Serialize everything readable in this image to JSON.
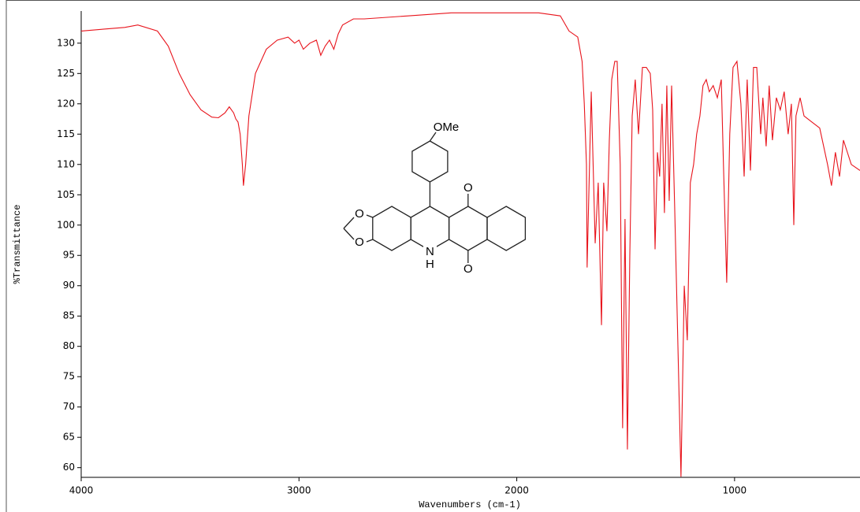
{
  "chart_data": {
    "type": "line",
    "x_label": "Wavenumbers (cm-1)",
    "y_label": "%Transmittance",
    "xlim": [
      4000,
      424
    ],
    "ylim": [
      58.4,
      135.3
    ],
    "xticks": [
      4000,
      3000,
      2000,
      1000
    ],
    "yticks": [
      60,
      65,
      70,
      75,
      80,
      85,
      90,
      95,
      100,
      105,
      110,
      115,
      120,
      125,
      130
    ],
    "structure_labels": [
      "OMe",
      "O",
      "O",
      "N",
      "H",
      "O",
      "O"
    ],
    "x": [
      4000,
      3900,
      3800,
      3740,
      3650,
      3600,
      3550,
      3500,
      3450,
      3400,
      3370,
      3340,
      3320,
      3300,
      3290,
      3280,
      3270,
      3260,
      3255,
      3245,
      3230,
      3200,
      3150,
      3100,
      3050,
      3020,
      3000,
      2980,
      2950,
      2920,
      2900,
      2880,
      2860,
      2840,
      2820,
      2800,
      2750,
      2700,
      2500,
      2300,
      2100,
      1900,
      1800,
      1760,
      1720,
      1700,
      1690,
      1680,
      1677,
      1658,
      1640,
      1626,
      1611,
      1601,
      1586,
      1575,
      1564,
      1550,
      1539,
      1525,
      1514,
      1503,
      1492,
      1481,
      1470,
      1456,
      1441,
      1423,
      1405,
      1387,
      1376,
      1365,
      1354,
      1344,
      1333,
      1322,
      1311,
      1300,
      1289,
      1275,
      1260,
      1246,
      1231,
      1217,
      1203,
      1188,
      1174,
      1159,
      1145,
      1130,
      1116,
      1098,
      1079,
      1061,
      1051,
      1036,
      1022,
      1007,
      989,
      971,
      956,
      942,
      927,
      913,
      898,
      880,
      870,
      855,
      841,
      826,
      808,
      790,
      772,
      754,
      739,
      728,
      718,
      699,
      681,
      645,
      609,
      591,
      573,
      555,
      537,
      518,
      500,
      482,
      464,
      424
    ],
    "series": [
      {
        "name": "%Transmittance",
        "color": "#e8141c",
        "values": [
          132,
          132.3,
          132.6,
          133,
          132,
          129.5,
          125,
          121.5,
          119,
          117.8,
          117.7,
          118.5,
          119.5,
          118.5,
          117.5,
          117,
          115,
          110,
          106.5,
          110,
          118,
          125,
          129,
          130.5,
          131,
          130,
          130.5,
          129,
          130,
          130.5,
          128,
          129.5,
          130.5,
          129,
          131.5,
          133,
          134,
          134,
          134.5,
          135,
          135,
          135,
          134.5,
          132,
          131,
          127,
          120,
          110,
          93,
          122,
          97,
          107,
          83.5,
          107,
          99,
          114,
          124,
          127,
          127,
          110,
          66.5,
          101,
          63,
          95,
          118,
          124,
          115,
          126,
          126,
          125,
          119,
          96,
          112,
          108,
          120,
          102,
          123,
          104,
          123,
          103,
          80,
          58.5,
          90,
          81,
          107,
          110,
          115,
          118,
          123,
          124,
          122,
          123,
          121,
          124,
          110,
          90.5,
          115,
          126,
          127,
          120,
          108,
          124,
          109,
          126,
          126,
          115,
          121,
          113,
          123,
          114,
          121,
          119,
          122,
          115,
          120,
          100,
          118,
          121,
          118,
          117,
          116,
          113,
          110,
          106.5,
          112,
          108,
          114,
          112,
          110,
          109
        ]
      }
    ]
  }
}
